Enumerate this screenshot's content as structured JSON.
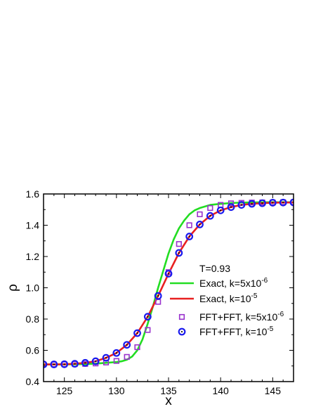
{
  "chart_data": {
    "type": "line",
    "xlabel": "x",
    "ylabel": "ρ",
    "xlim": [
      123,
      147
    ],
    "ylim": [
      0.4,
      1.6
    ],
    "x_ticks": [
      125,
      130,
      135,
      140,
      145
    ],
    "x_minor_step": 1,
    "y_ticks": [
      0.4,
      0.6,
      0.8,
      1.0,
      1.2,
      1.4,
      1.6
    ],
    "y_tick_labels": [
      "0.4",
      "0.6",
      "0.8",
      "1.0",
      "1.2",
      "1.4",
      "1.6"
    ],
    "y_minor_step": 0.1,
    "grid": false,
    "legend_position": "center-right",
    "annotation": "T=0.93",
    "series": [
      {
        "name": "Exact, k=5x10",
        "name_exp": "-6",
        "kind": "line",
        "color": "#22dd22",
        "x": [
          123,
          125,
          127,
          128,
          129,
          130,
          130.5,
          131,
          131.5,
          132,
          132.5,
          133,
          133.5,
          134,
          134.5,
          135,
          135.5,
          136,
          136.5,
          137,
          137.5,
          138,
          139,
          140,
          141,
          142,
          143,
          145,
          147
        ],
        "y": [
          0.51,
          0.51,
          0.512,
          0.515,
          0.52,
          0.525,
          0.53,
          0.54,
          0.56,
          0.6,
          0.67,
          0.77,
          0.88,
          1.0,
          1.11,
          1.22,
          1.31,
          1.38,
          1.43,
          1.47,
          1.495,
          1.51,
          1.53,
          1.537,
          1.542,
          1.545,
          1.546,
          1.547,
          1.547
        ]
      },
      {
        "name": "Exact, k=10",
        "name_exp": "-5",
        "kind": "line",
        "color": "#e82020",
        "x": [
          123,
          124,
          125,
          126,
          127,
          128,
          129,
          130,
          131,
          132,
          133,
          134,
          135,
          136,
          137,
          138,
          139,
          140,
          141,
          142,
          143,
          144,
          145,
          146,
          147
        ],
        "y": [
          0.51,
          0.51,
          0.511,
          0.514,
          0.52,
          0.53,
          0.552,
          0.583,
          0.635,
          0.71,
          0.815,
          0.948,
          1.09,
          1.223,
          1.328,
          1.405,
          1.46,
          1.495,
          1.516,
          1.53,
          1.537,
          1.541,
          1.544,
          1.545,
          1.546
        ]
      },
      {
        "name": "FFT+FFT, k=5x10",
        "name_exp": "-6",
        "kind": "marker",
        "marker": "square",
        "color": "#9a32cd",
        "x": [
          123,
          124,
          125,
          126,
          127,
          128,
          129,
          130,
          131,
          132,
          133,
          134,
          135,
          136,
          137,
          138,
          139,
          140,
          141,
          142,
          143,
          144,
          145,
          146,
          147
        ],
        "y": [
          0.51,
          0.51,
          0.511,
          0.512,
          0.513,
          0.516,
          0.522,
          0.532,
          0.558,
          0.62,
          0.73,
          0.91,
          1.1,
          1.28,
          1.4,
          1.47,
          1.51,
          1.53,
          1.54,
          1.543,
          1.545,
          1.546,
          1.546,
          1.547,
          1.547
        ]
      },
      {
        "name": "FFT+FFT, k=10",
        "name_exp": "-5",
        "kind": "marker",
        "marker": "circle",
        "color": "#1a1aee",
        "x": [
          123,
          124,
          125,
          126,
          127,
          128,
          129,
          130,
          131,
          132,
          133,
          134,
          135,
          136,
          137,
          138,
          139,
          140,
          141,
          142,
          143,
          144,
          145,
          146,
          147
        ],
        "y": [
          0.51,
          0.51,
          0.511,
          0.514,
          0.52,
          0.53,
          0.552,
          0.583,
          0.635,
          0.71,
          0.815,
          0.948,
          1.09,
          1.223,
          1.328,
          1.405,
          1.46,
          1.495,
          1.516,
          1.53,
          1.537,
          1.541,
          1.544,
          1.545,
          1.546
        ]
      }
    ]
  }
}
